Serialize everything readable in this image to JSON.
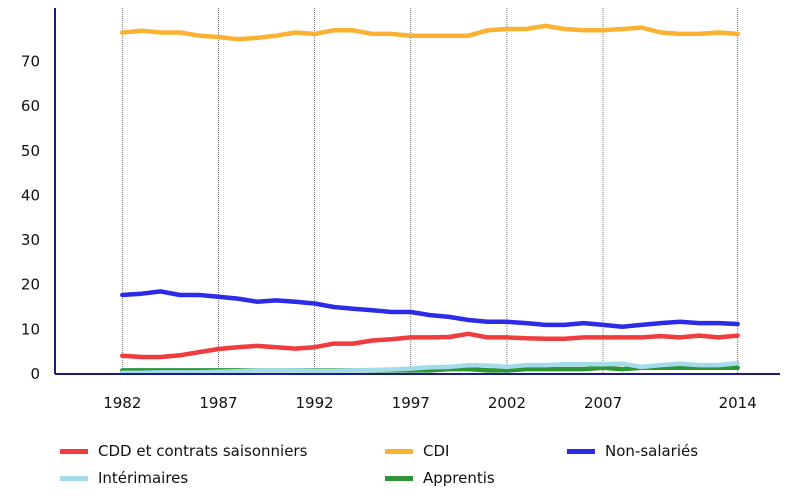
{
  "chart_data": {
    "type": "line",
    "x": [
      1982,
      1983,
      1984,
      1985,
      1986,
      1987,
      1988,
      1989,
      1990,
      1991,
      1992,
      1993,
      1994,
      1995,
      1996,
      1997,
      1998,
      1999,
      2000,
      2001,
      2002,
      2003,
      2004,
      2005,
      2006,
      2007,
      2008,
      2009,
      2010,
      2011,
      2012,
      2013,
      2014
    ],
    "x_ticks": [
      1982,
      1987,
      1992,
      1997,
      2002,
      2007,
      2014
    ],
    "y_ticks": [
      0,
      10,
      20,
      30,
      40,
      50,
      60,
      70
    ],
    "ylim": [
      0,
      82
    ],
    "xlim": [
      1978.5,
      2016.2
    ],
    "grid": "x",
    "legend_position": "bottom",
    "series": [
      {
        "name": "CDD et contrats saisonniers",
        "color": "#f03c3c",
        "values": [
          4.1,
          3.8,
          3.8,
          4.2,
          4.9,
          5.6,
          6.0,
          6.3,
          6.0,
          5.7,
          6.0,
          6.8,
          6.8,
          7.5,
          7.8,
          8.2,
          8.2,
          8.3,
          9.0,
          8.2,
          8.2,
          8.0,
          7.9,
          7.9,
          8.2,
          8.2,
          8.2,
          8.2,
          8.5,
          8.2,
          8.6,
          8.2,
          8.6
        ]
      },
      {
        "name": "CDI",
        "color": "#fbb131",
        "values": [
          76.5,
          76.9,
          76.5,
          76.5,
          75.8,
          75.5,
          75.0,
          75.3,
          75.8,
          76.5,
          76.2,
          77.0,
          77.0,
          76.2,
          76.2,
          75.8,
          75.8,
          75.8,
          75.8,
          77.0,
          77.3,
          77.3,
          78.0,
          77.3,
          77.0,
          77.0,
          77.3,
          77.6,
          76.5,
          76.2,
          76.2,
          76.5,
          76.2
        ]
      },
      {
        "name": "Non-salariés",
        "color": "#2b2be8",
        "values": [
          17.7,
          18.0,
          18.5,
          17.7,
          17.7,
          17.3,
          16.9,
          16.2,
          16.5,
          16.2,
          15.8,
          15.0,
          14.6,
          14.3,
          13.9,
          13.9,
          13.2,
          12.8,
          12.1,
          11.7,
          11.7,
          11.4,
          11.0,
          11.0,
          11.4,
          11.0,
          10.6,
          11.0,
          11.4,
          11.7,
          11.4,
          11.4,
          11.2
        ]
      },
      {
        "name": "Intérimaires",
        "color": "#a3dbeb",
        "values": [
          0.3,
          0.3,
          0.4,
          0.4,
          0.4,
          0.5,
          0.6,
          0.8,
          0.8,
          0.8,
          0.7,
          0.7,
          0.8,
          0.9,
          1.0,
          1.2,
          1.5,
          1.6,
          2.0,
          1.9,
          1.6,
          2.0,
          2.0,
          2.2,
          2.2,
          2.2,
          2.3,
          1.6,
          2.0,
          2.3,
          2.0,
          2.0,
          2.4
        ]
      },
      {
        "name": "Apprentis",
        "color": "#2f9436",
        "values": [
          0.8,
          0.8,
          0.8,
          0.8,
          0.8,
          0.8,
          0.8,
          0.8,
          0.8,
          0.8,
          0.8,
          0.8,
          0.8,
          0.8,
          0.8,
          0.8,
          0.8,
          1.1,
          1.1,
          0.8,
          0.8,
          1.1,
          1.1,
          1.1,
          1.1,
          1.4,
          1.1,
          1.4,
          1.4,
          1.4,
          1.4,
          1.4,
          1.4
        ]
      }
    ],
    "draw_order": [
      4,
      3,
      0,
      2,
      1
    ]
  }
}
